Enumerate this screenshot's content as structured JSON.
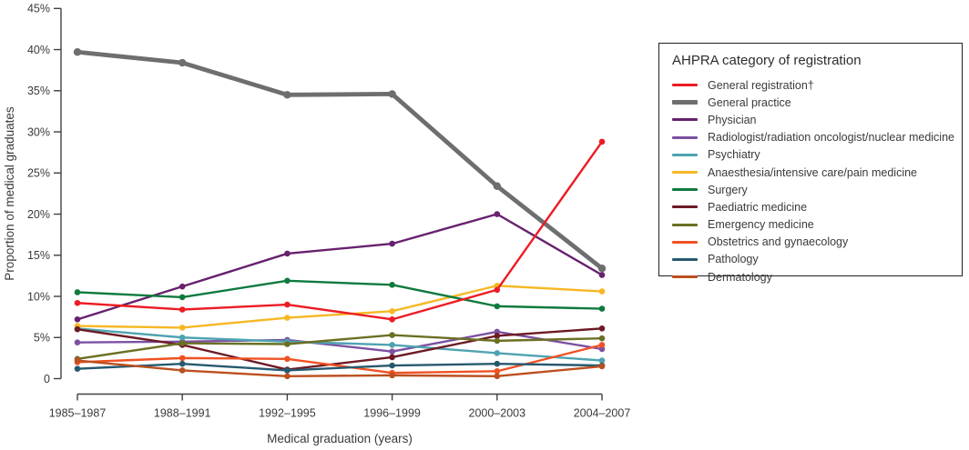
{
  "figure": {
    "background": "#ffffff",
    "axis_color": "#414042",
    "text_color": "#3a3a3c"
  },
  "legend": {
    "title": "AHPRA category of registration"
  },
  "chart_data": {
    "type": "line",
    "title": "",
    "xlabel": "Medical graduation (years)",
    "ylabel": "Proportion of medical graduates",
    "ylim": [
      0,
      45
    ],
    "ytick_step": 5,
    "ytick_suffix": "%",
    "ytick_zero_label": "0",
    "grid": false,
    "legend_position": "right",
    "categories": [
      "1985–1987",
      "1988–1991",
      "1992–1995",
      "1996–1999",
      "2000–2003",
      "2004–2007"
    ],
    "series": [
      {
        "name": "General registration†",
        "color": "#ec1c24",
        "line_width": 2.4,
        "values": [
          9.2,
          8.4,
          9.0,
          7.2,
          10.8,
          28.8
        ]
      },
      {
        "name": "General practice",
        "color": "#6d6e70",
        "line_width": 4.8,
        "values": [
          39.7,
          38.4,
          34.5,
          34.6,
          23.4,
          13.4
        ]
      },
      {
        "name": "Physician",
        "color": "#67216d",
        "line_width": 2.4,
        "values": [
          7.2,
          11.2,
          15.2,
          16.4,
          20.0,
          12.6
        ]
      },
      {
        "name": "Radiologist/radiation oncologist/nuclear medicine",
        "color": "#7c51a1",
        "line_width": 2.4,
        "values": [
          4.4,
          4.5,
          4.7,
          3.3,
          5.7,
          3.6
        ]
      },
      {
        "name": "Psychiatry",
        "color": "#4fa3b1",
        "line_width": 2.4,
        "values": [
          6.1,
          5.0,
          4.5,
          4.1,
          3.1,
          2.2
        ]
      },
      {
        "name": "Anaesthesia/intensive care/pain medicine",
        "color": "#f6b824",
        "line_width": 2.4,
        "values": [
          6.4,
          6.2,
          7.4,
          8.2,
          11.3,
          10.6
        ]
      },
      {
        "name": "Surgery",
        "color": "#0e7a3e",
        "line_width": 2.4,
        "values": [
          10.5,
          9.9,
          11.9,
          11.4,
          8.8,
          8.5
        ]
      },
      {
        "name": "Paediatric medicine",
        "color": "#6d1a24",
        "line_width": 2.4,
        "values": [
          6.0,
          4.1,
          1.1,
          2.6,
          5.2,
          6.1
        ]
      },
      {
        "name": "Emergency medicine",
        "color": "#6b7023",
        "line_width": 2.4,
        "values": [
          2.4,
          4.3,
          4.2,
          5.3,
          4.6,
          4.9
        ]
      },
      {
        "name": "Obstetrics and gynaecology",
        "color": "#f05123",
        "line_width": 2.4,
        "values": [
          2.0,
          2.5,
          2.4,
          0.7,
          0.9,
          4.1
        ]
      },
      {
        "name": "Pathology",
        "color": "#26596f",
        "line_width": 2.4,
        "values": [
          1.2,
          1.8,
          1.0,
          1.6,
          1.8,
          1.6
        ]
      },
      {
        "name": "Dermatology",
        "color": "#bc4f1f",
        "line_width": 2.4,
        "values": [
          2.2,
          1.0,
          0.3,
          0.4,
          0.3,
          1.5
        ]
      }
    ],
    "z_order": [
      1,
      2,
      3,
      4,
      5,
      6,
      7,
      8,
      9,
      10,
      11,
      0
    ]
  }
}
